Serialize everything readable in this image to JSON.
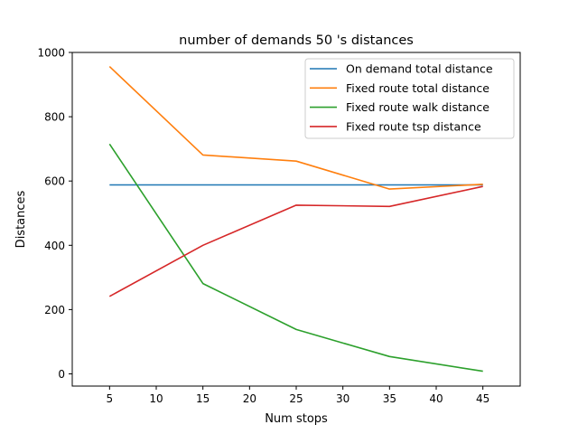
{
  "chart_data": {
    "type": "line",
    "title": "number of demands 50 's distances",
    "xlabel": "Num stops",
    "ylabel": "Distances",
    "x": [
      5,
      15,
      25,
      35,
      45
    ],
    "xlim": [
      1,
      49
    ],
    "ylim": [
      -38,
      1000
    ],
    "xticks": [
      "5",
      "10",
      "15",
      "20",
      "25",
      "30",
      "35",
      "40",
      "45"
    ],
    "yticks": [
      "0",
      "200",
      "400",
      "600",
      "800",
      "1000"
    ],
    "grid": false,
    "legend_position": "top-right",
    "series": [
      {
        "name": "On demand total distance",
        "color": "#1f77b4",
        "values": [
          588,
          588,
          588,
          588,
          588
        ]
      },
      {
        "name": "Fixed route total distance",
        "color": "#ff7f0e",
        "values": [
          956,
          681,
          662,
          575,
          590
        ]
      },
      {
        "name": "Fixed route walk distance",
        "color": "#2ca02c",
        "values": [
          715,
          281,
          138,
          54,
          8
        ]
      },
      {
        "name": "Fixed route tsp distance",
        "color": "#d62728",
        "values": [
          241,
          400,
          525,
          521,
          583
        ]
      }
    ]
  }
}
